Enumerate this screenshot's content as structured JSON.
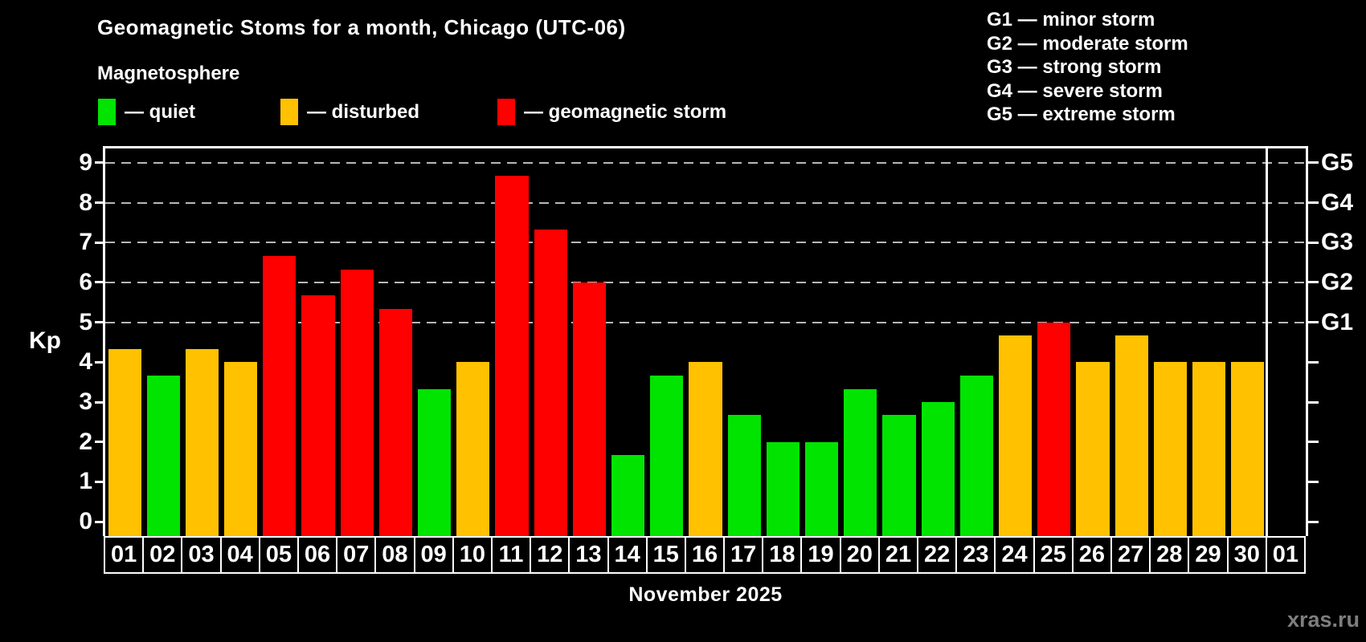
{
  "header": {
    "title": "Geomagnetic Stoms for a month, Chicago (UTC-06)",
    "subtitle": "Magnetosphere",
    "legend": [
      {
        "key": "quiet",
        "label": "— quiet",
        "color": "#00e400"
      },
      {
        "key": "disturbed",
        "label": "— disturbed",
        "color": "#ffc100"
      },
      {
        "key": "storm",
        "label": "— geomagnetic storm",
        "color": "#ff0000"
      }
    ],
    "g_legend": [
      "G1 — minor storm",
      "G2 — moderate storm",
      "G3 — strong storm",
      "G4 — severe storm",
      "G5 — extreme storm"
    ]
  },
  "chart_data": {
    "type": "bar",
    "title": "Geomagnetic Stoms for a month, Chicago (UTC-06)",
    "ylabel": "Kp",
    "xlabel": "November 2025",
    "ylim": [
      -0.36,
      9.36
    ],
    "yticks": [
      0,
      1,
      2,
      3,
      4,
      5,
      6,
      7,
      8,
      9
    ],
    "gridline_levels": [
      5,
      6,
      7,
      8,
      9
    ],
    "grid": "dashed horizontal lines at storm levels only",
    "legend_position": "top",
    "right_axis": [
      {
        "label": "G1",
        "value": 5
      },
      {
        "label": "G2",
        "value": 6
      },
      {
        "label": "G3",
        "value": 7
      },
      {
        "label": "G4",
        "value": 8
      },
      {
        "label": "G5",
        "value": 9
      }
    ],
    "categories": [
      "01",
      "02",
      "03",
      "04",
      "05",
      "06",
      "07",
      "08",
      "09",
      "10",
      "11",
      "12",
      "13",
      "14",
      "15",
      "16",
      "17",
      "18",
      "19",
      "20",
      "21",
      "22",
      "23",
      "24",
      "25",
      "26",
      "27",
      "28",
      "29",
      "30",
      "01"
    ],
    "values": [
      4.33,
      3.67,
      4.33,
      4,
      6.67,
      5.67,
      6.33,
      5.33,
      3.33,
      4,
      8.67,
      7.33,
      6,
      1.67,
      3.67,
      4,
      2.67,
      2,
      2,
      3.33,
      2.67,
      3,
      3.67,
      4.67,
      5,
      4,
      4.67,
      4,
      4,
      4,
      null
    ],
    "statuses": [
      "disturbed",
      "quiet",
      "disturbed",
      "disturbed",
      "storm",
      "storm",
      "storm",
      "storm",
      "quiet",
      "disturbed",
      "storm",
      "storm",
      "storm",
      "quiet",
      "quiet",
      "disturbed",
      "quiet",
      "quiet",
      "quiet",
      "quiet",
      "quiet",
      "quiet",
      "quiet",
      "disturbed",
      "storm",
      "disturbed",
      "disturbed",
      "disturbed",
      "disturbed",
      "disturbed",
      null
    ],
    "status_colors": {
      "quiet": "#00e400",
      "disturbed": "#ffc100",
      "storm": "#ff0000"
    }
  },
  "axis": {
    "kp_label": "Kp"
  },
  "footer": {
    "month_label": "November 2025",
    "watermark": "xras.ru"
  }
}
